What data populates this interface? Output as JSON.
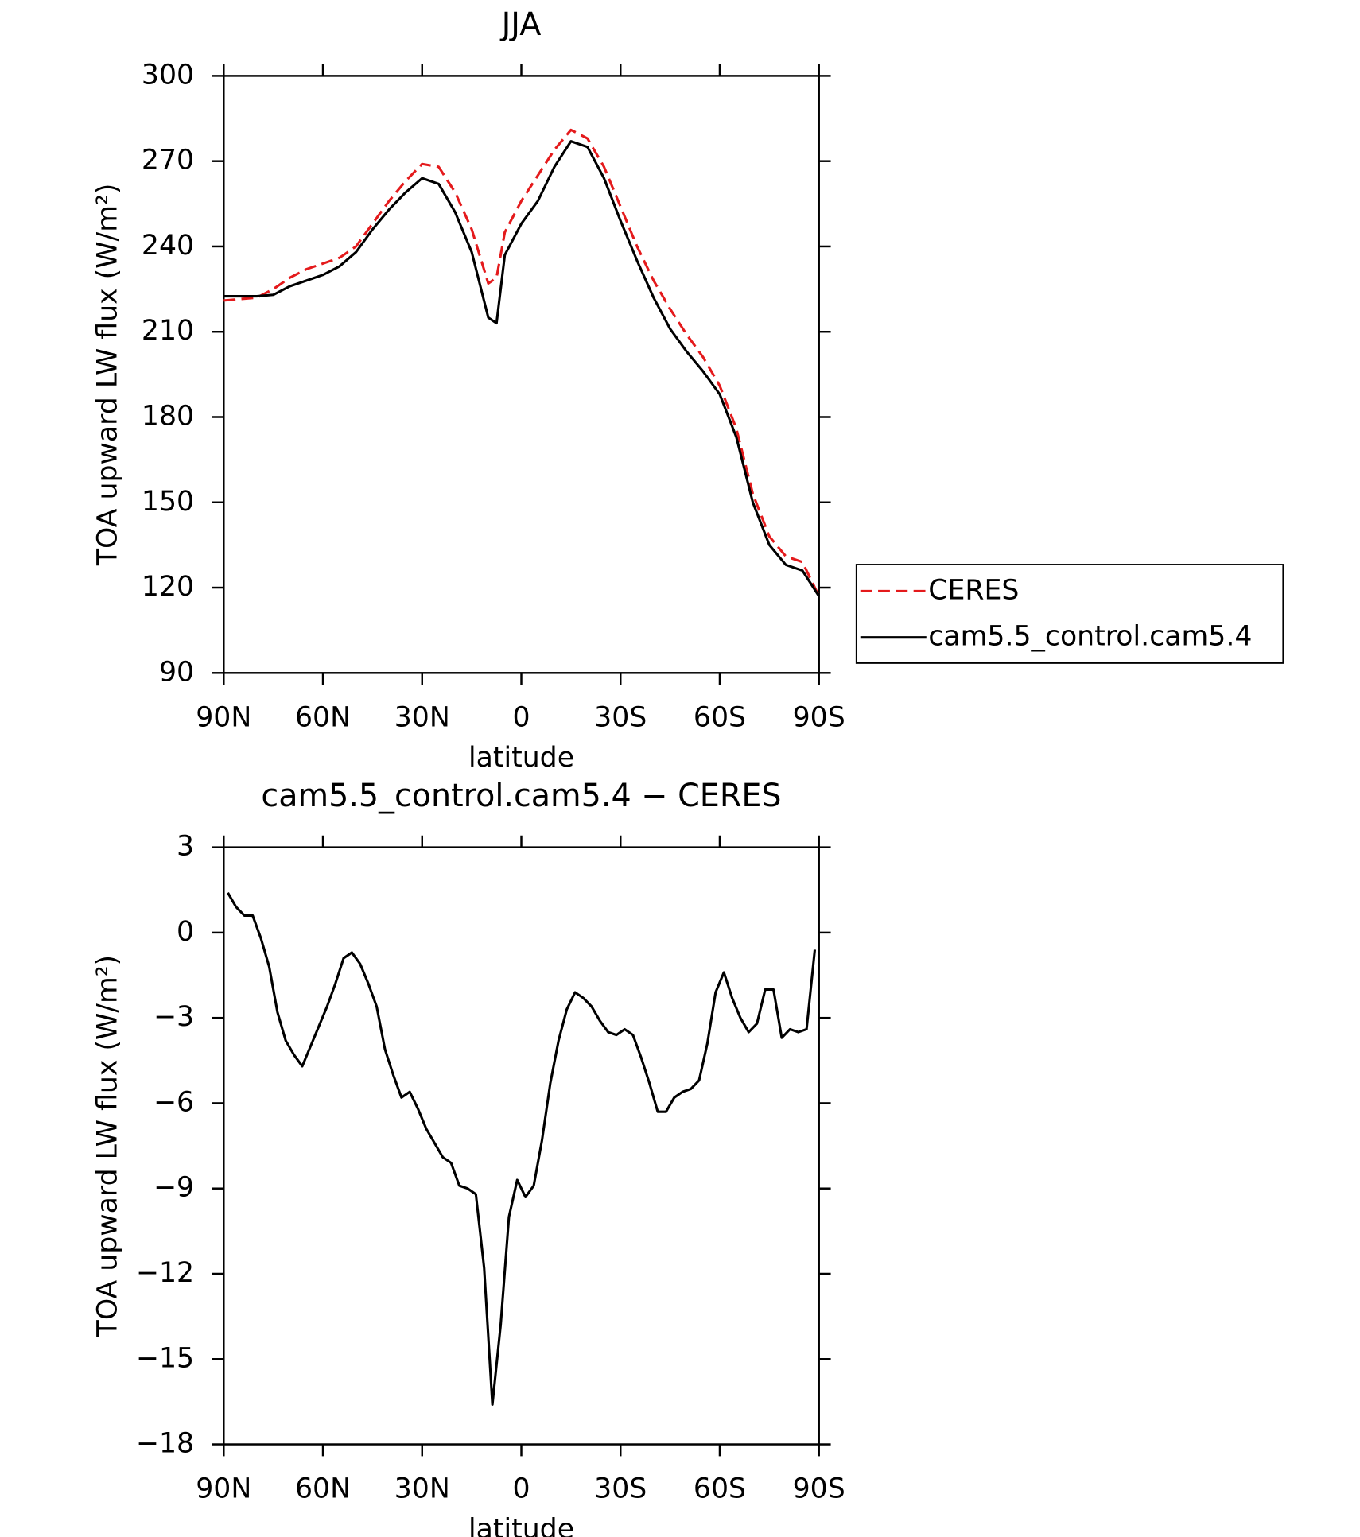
{
  "chart_data": [
    {
      "type": "line",
      "title": "JJA",
      "xlabel": "latitude",
      "ylabel": "TOA upward LW flux (W/m²)",
      "x": [
        90,
        85,
        80,
        75,
        70,
        65,
        60,
        55,
        50,
        45,
        40,
        35,
        30,
        25,
        20,
        15,
        10,
        7.5,
        5,
        0,
        -5,
        -10,
        -15,
        -20,
        -25,
        -30,
        -35,
        -40,
        -45,
        -50,
        -55,
        -60,
        -65,
        -70,
        -75,
        -80,
        -85,
        -90
      ],
      "xlim": [
        90,
        -90
      ],
      "xticks": [
        {
          "value": 90,
          "label": "90N"
        },
        {
          "value": 60,
          "label": "60N"
        },
        {
          "value": 30,
          "label": "30N"
        },
        0,
        {
          "value": -30,
          "label": "30S"
        },
        {
          "value": -60,
          "label": "60S"
        },
        {
          "value": -90,
          "label": "90S"
        }
      ],
      "ylim": [
        90,
        300
      ],
      "yticks": [
        90,
        120,
        150,
        180,
        210,
        240,
        270,
        300
      ],
      "legend": "outside-right",
      "series": [
        {
          "name": "CERES",
          "color": "#e41a1c",
          "dashed": true,
          "values": [
            221,
            221.5,
            222,
            225,
            229,
            232,
            234,
            236,
            240,
            248,
            256,
            263,
            269,
            268,
            259,
            246,
            227,
            229,
            245,
            256,
            265,
            274,
            281,
            278,
            268,
            254,
            240,
            228,
            218,
            209,
            201,
            191,
            176,
            153,
            138,
            131,
            129,
            117
          ]
        },
        {
          "name": "cam5.5_control.cam5.4",
          "color": "#000000",
          "dashed": false,
          "values": [
            222.5,
            222.5,
            222.5,
            223,
            226,
            228,
            230,
            233,
            238,
            246,
            253,
            259,
            264,
            262,
            252,
            238,
            215,
            213,
            237,
            248,
            256,
            268,
            277,
            275,
            264,
            249,
            235,
            222,
            211,
            203,
            196,
            188,
            173,
            150,
            135,
            128,
            126,
            117
          ]
        }
      ]
    },
    {
      "type": "line",
      "title": "cam5.5_control.cam5.4 − CERES",
      "xlabel": "latitude",
      "ylabel": "TOA upward LW flux (W/m²)",
      "x": [
        88.75,
        86.25,
        83.75,
        81.25,
        78.75,
        76.25,
        73.75,
        71.25,
        68.75,
        66.25,
        63.75,
        61.25,
        58.75,
        56.25,
        53.75,
        51.25,
        48.75,
        46.25,
        43.75,
        41.25,
        38.75,
        36.25,
        33.75,
        31.25,
        28.75,
        26.25,
        23.75,
        21.25,
        18.75,
        16.25,
        13.75,
        11.25,
        8.75,
        6.25,
        3.75,
        1.25,
        -1.25,
        -3.75,
        -6.25,
        -8.75,
        -11.25,
        -13.75,
        -16.25,
        -18.75,
        -21.25,
        -23.75,
        -26.25,
        -28.75,
        -31.25,
        -33.75,
        -36.25,
        -38.75,
        -41.25,
        -43.75,
        -46.25,
        -48.75,
        -51.25,
        -53.75,
        -56.25,
        -58.75,
        -61.25,
        -63.75,
        -66.25,
        -68.75,
        -71.25,
        -73.75,
        -76.25,
        -78.75,
        -81.25,
        -83.75,
        -86.25,
        -88.75
      ],
      "xlim": [
        90,
        -90
      ],
      "xticks": [
        {
          "value": 90,
          "label": "90N"
        },
        {
          "value": 60,
          "label": "60N"
        },
        {
          "value": 30,
          "label": "30N"
        },
        0,
        {
          "value": -30,
          "label": "30S"
        },
        {
          "value": -60,
          "label": "60S"
        },
        {
          "value": -90,
          "label": "90S"
        }
      ],
      "ylim": [
        -18,
        3
      ],
      "yticks": [
        {
          "value": -18,
          "label": "−18"
        },
        {
          "value": -15,
          "label": "−15"
        },
        {
          "value": -12,
          "label": "−12"
        },
        {
          "value": -9,
          "label": "−9"
        },
        {
          "value": -6,
          "label": "−6"
        },
        {
          "value": -3,
          "label": "−3"
        },
        0,
        3
      ],
      "series": [
        {
          "color": "#000000",
          "dashed": false,
          "values": [
            1.4,
            0.9,
            0.6,
            0.6,
            -0.2,
            -1.2,
            -2.8,
            -3.8,
            -4.3,
            -4.7,
            -4.0,
            -3.3,
            -2.6,
            -1.8,
            -0.9,
            -0.7,
            -1.1,
            -1.8,
            -2.6,
            -4.1,
            -5.0,
            -5.8,
            -5.6,
            -6.2,
            -6.9,
            -7.4,
            -7.9,
            -8.1,
            -8.9,
            -9.0,
            -9.2,
            -11.8,
            -16.6,
            -13.8,
            -10.0,
            -8.7,
            -9.3,
            -8.9,
            -7.3,
            -5.3,
            -3.8,
            -2.7,
            -2.1,
            -2.3,
            -2.6,
            -3.1,
            -3.5,
            -3.6,
            -3.4,
            -3.6,
            -4.4,
            -5.3,
            -6.3,
            -6.3,
            -5.8,
            -5.6,
            -5.5,
            -5.2,
            -3.9,
            -2.1,
            -1.4,
            -2.3,
            -3.0,
            -3.5,
            -3.2,
            -2.0,
            -2.0,
            -3.7,
            -3.4,
            -3.5,
            -3.4,
            -0.6
          ]
        }
      ]
    }
  ]
}
